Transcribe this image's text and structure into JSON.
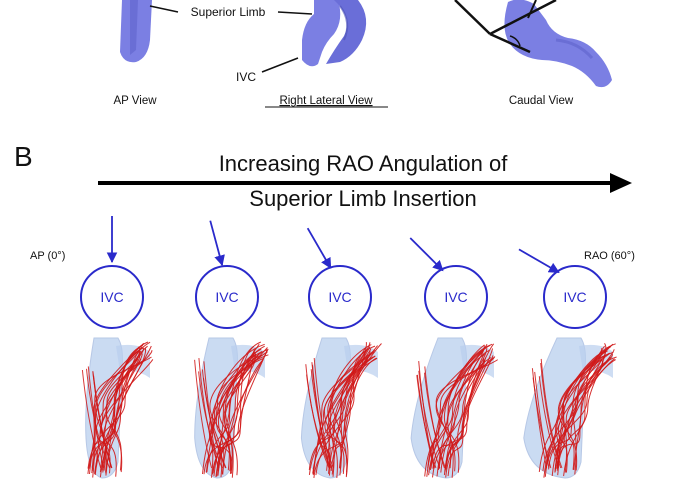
{
  "panelA": {
    "label_superior_limb": "Superior Limb",
    "label_ivc": "IVC",
    "views": [
      "AP View",
      "Right Lateral View",
      "Caudal View"
    ]
  },
  "panelB": {
    "panel_letter": "B",
    "title_line1": "Increasing RAO Angulation of",
    "title_line2": "Superior Limb Insertion",
    "left_label": "AP (0°)",
    "right_label": "RAO (60°)",
    "circle_label": "IVC",
    "angles_deg": [
      0,
      15,
      30,
      45,
      60
    ]
  },
  "colors": {
    "vessel": "#7b7fe3",
    "vessel_dark": "#5a5ec8",
    "circle": "#2a2acb",
    "streamline": "#d01818",
    "ghost": "#b9cfee"
  }
}
